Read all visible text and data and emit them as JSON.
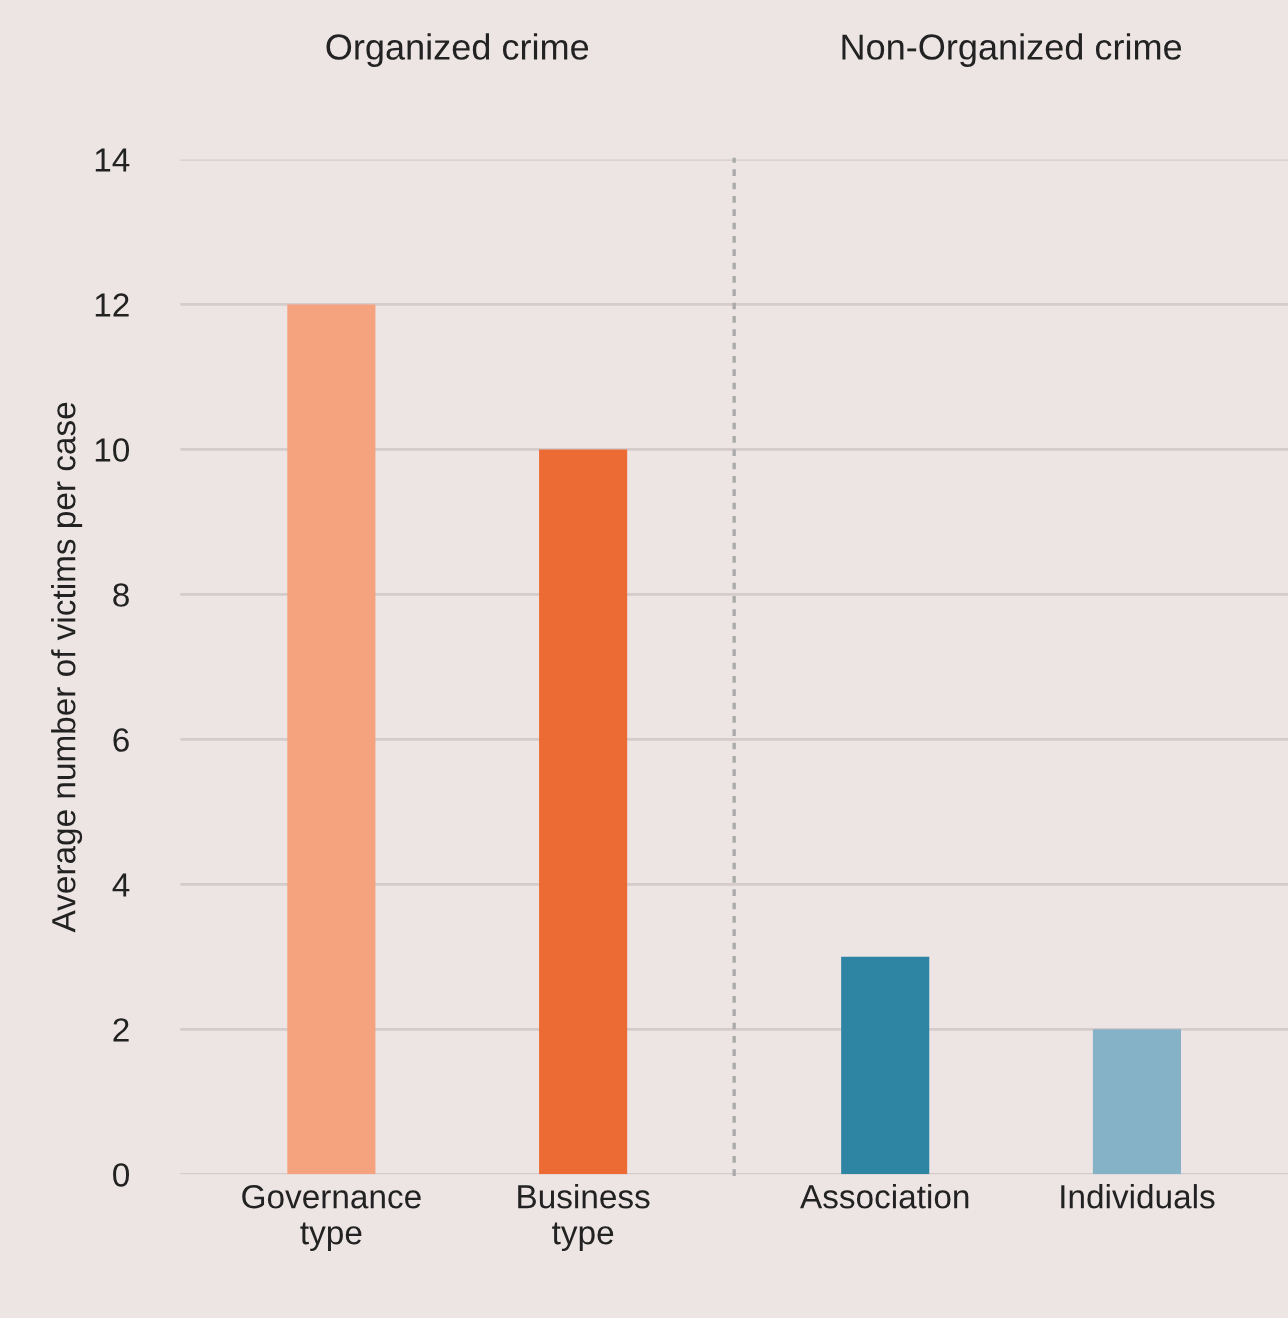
{
  "chart_data": [
    {
      "type": "bar",
      "title": "Organized crime",
      "ylabel": "Average number of victims per case",
      "categories": [
        "Governance\ntype",
        "Business\ntype"
      ],
      "values": [
        12,
        10
      ],
      "colors": [
        "#f5a27f",
        "#ec6a33"
      ],
      "ylim": [
        0,
        14
      ],
      "yticks": [
        0,
        2,
        4,
        6,
        8,
        10,
        12,
        14
      ],
      "grid": "y"
    },
    {
      "type": "bar",
      "title": "Non-Organized crime",
      "categories": [
        "Association",
        "Individuals"
      ],
      "values": [
        3,
        2
      ],
      "colors": [
        "#2e84a3",
        "#86b2c8"
      ],
      "ylim": [
        0,
        14
      ],
      "yticks": [
        0,
        2,
        4,
        6,
        8,
        10,
        12,
        14
      ],
      "grid": "y",
      "tick_labels": "x"
    }
  ]
}
